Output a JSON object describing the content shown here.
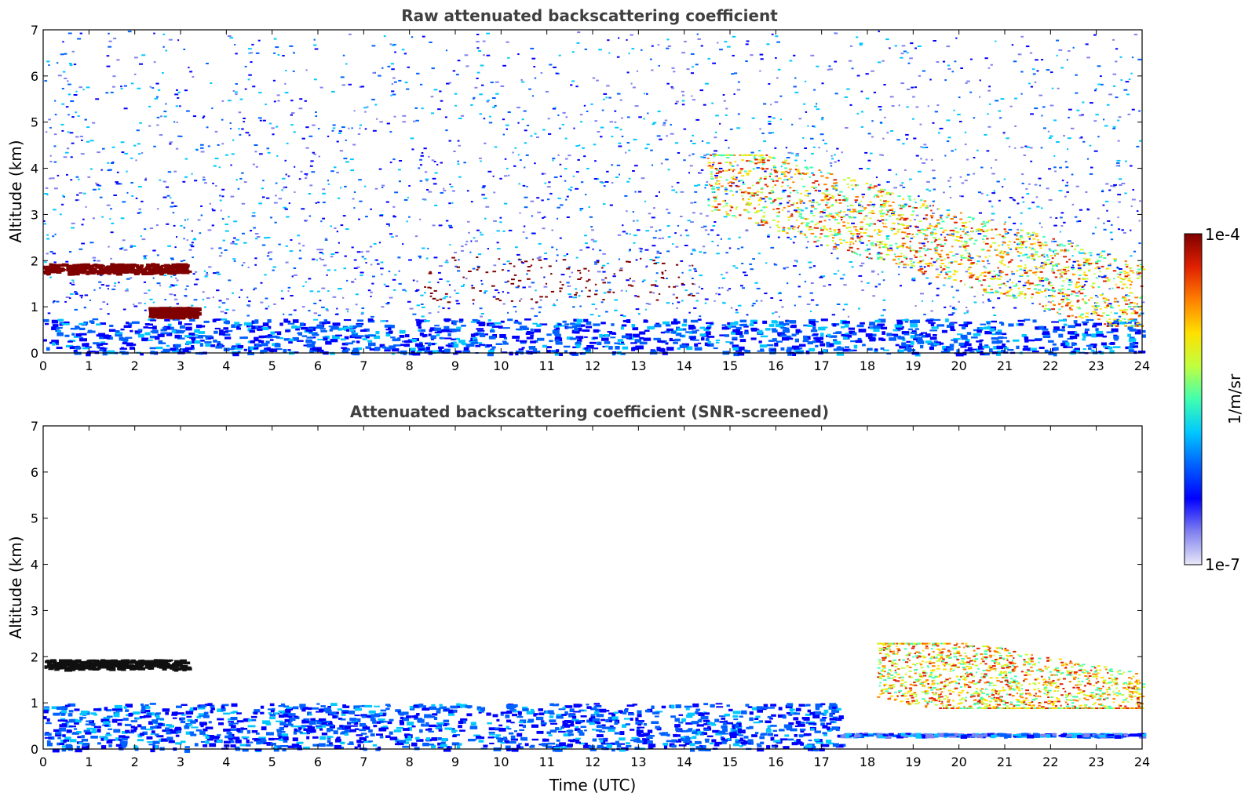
{
  "chart_data": [
    {
      "type": "heatmap",
      "title": "Raw attenuated backscattering coefficient",
      "xlabel": "",
      "ylabel": "Altitude (km)",
      "xlim": [
        0,
        24
      ],
      "ylim": [
        0,
        7
      ],
      "x_ticks": [
        0,
        1,
        2,
        3,
        4,
        5,
        6,
        7,
        8,
        9,
        10,
        11,
        12,
        13,
        14,
        15,
        16,
        17,
        18,
        19,
        20,
        21,
        22,
        23,
        24
      ],
      "y_ticks": [
        0,
        1,
        2,
        3,
        4,
        5,
        6,
        7
      ],
      "features": [
        {
          "kind": "noise",
          "t0": 0,
          "t1": 24,
          "z0": 0.8,
          "z1": 7,
          "value": "low"
        },
        {
          "kind": "boundary_layer",
          "t0": 0,
          "t1": 24,
          "z0": 0,
          "z1": 0.75,
          "value": "low-mid"
        },
        {
          "kind": "cloud_layer",
          "t0": 0,
          "t1": 3.1,
          "z0": 1.75,
          "z1": 1.95,
          "value": "1e-4"
        },
        {
          "kind": "cloud_layer",
          "t0": 2.3,
          "t1": 3.3,
          "z0": 0.8,
          "z1": 1.0,
          "value": "1e-4"
        },
        {
          "kind": "cloud_patches",
          "t0": 8.3,
          "t1": 14.3,
          "z0": 1.1,
          "z1": 2.1,
          "value": "1e-4"
        },
        {
          "kind": "cirrus_band",
          "t0": 14.5,
          "t1": 24,
          "z0": 0.6,
          "z1": 4.3,
          "value": "mid-high"
        }
      ]
    },
    {
      "type": "heatmap",
      "title": "Attenuated backscattering coefficient (SNR-screened)",
      "xlabel": "Time (UTC)",
      "ylabel": "Altitude (km)",
      "xlim": [
        0,
        24
      ],
      "ylim": [
        0,
        7
      ],
      "x_ticks": [
        0,
        1,
        2,
        3,
        4,
        5,
        6,
        7,
        8,
        9,
        10,
        11,
        12,
        13,
        14,
        15,
        16,
        17,
        18,
        19,
        20,
        21,
        22,
        23,
        24
      ],
      "y_ticks": [
        0,
        1,
        2,
        3,
        4,
        5,
        6,
        7
      ],
      "features": [
        {
          "kind": "boundary_layer",
          "t0": 0,
          "t1": 17.4,
          "z0": 0,
          "z1": 1.0,
          "value": "low-mid"
        },
        {
          "kind": "surface_layer",
          "t0": 17.4,
          "t1": 24,
          "z0": 0.3,
          "z1": 0.35,
          "value": "low"
        },
        {
          "kind": "cloud_layer",
          "t0": 0,
          "t1": 3.1,
          "z0": 1.75,
          "z1": 1.95,
          "value": "saturated"
        },
        {
          "kind": "cirrus_band",
          "t0": 18.2,
          "t1": 24,
          "z0": 0.9,
          "z1": 2.3,
          "value": "mid-high"
        }
      ]
    }
  ],
  "colorbar": {
    "label": "1/m/sr",
    "max_label": "1e-4",
    "min_label": "1e-7",
    "scale": "log",
    "colors": [
      "#e8e8f8",
      "#8080f0",
      "#0000ff",
      "#0060ff",
      "#00c8ff",
      "#40ffb0",
      "#c0ff40",
      "#ffe000",
      "#ff8000",
      "#e02000",
      "#800000"
    ]
  }
}
